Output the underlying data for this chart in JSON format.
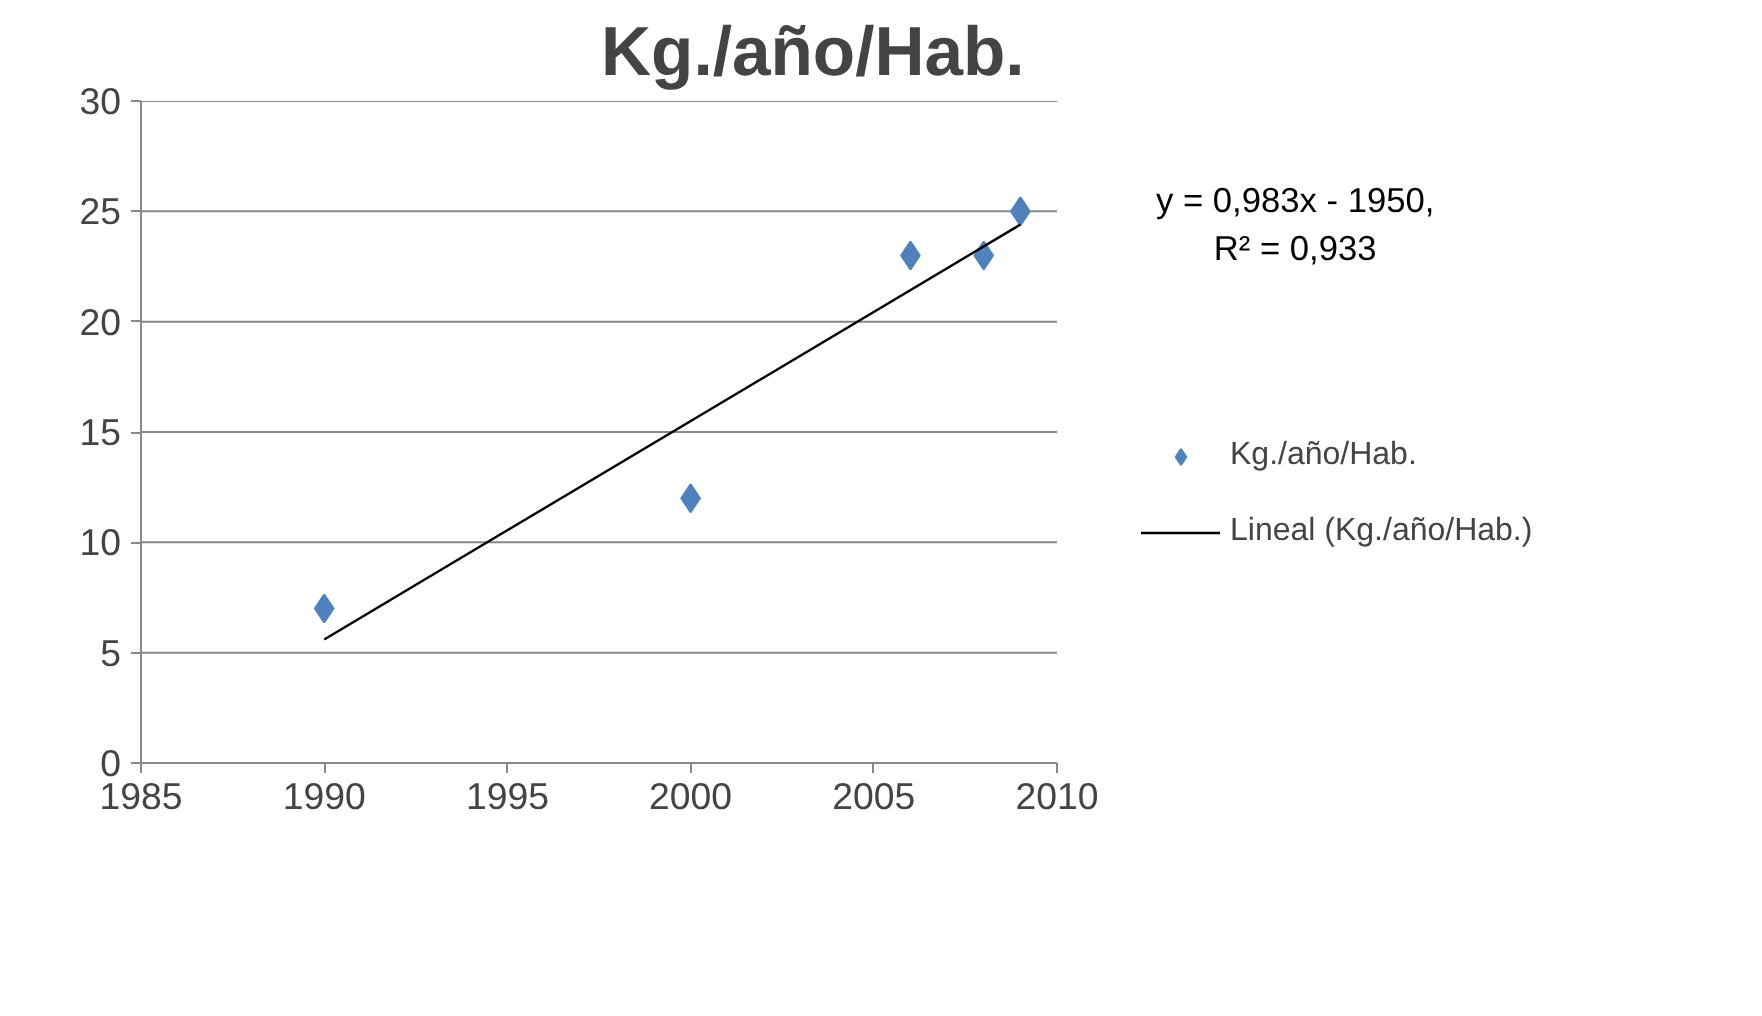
{
  "chart_data": {
    "type": "scatter",
    "title": "Kg./año/Hab.",
    "x": [
      1990,
      2000,
      2006,
      2008,
      2009
    ],
    "series": [
      {
        "name": "Kg./año/Hab.",
        "color": "#4f81bd",
        "marker": "diamond",
        "values": [
          7,
          12,
          23,
          23,
          25
        ]
      },
      {
        "name": "Lineal (Kg./año/Hab.)",
        "type": "line",
        "color": "#000000",
        "line_style": "solid",
        "x": [
          1990,
          2009
        ],
        "values": [
          5.6,
          24.4
        ]
      }
    ],
    "annotations": [
      "y = 0,983x - 1950,\nR² = 0,933"
    ],
    "xlim": [
      1985,
      2010
    ],
    "xticks": [
      1985,
      1990,
      1995,
      2000,
      2005,
      2010
    ],
    "ylim": [
      0,
      30
    ],
    "yticks": [
      0,
      5,
      10,
      15,
      20,
      25,
      30
    ],
    "grid": "y",
    "legend": "right"
  }
}
